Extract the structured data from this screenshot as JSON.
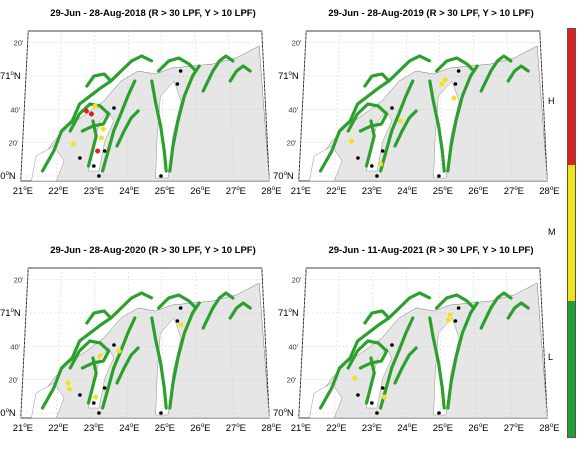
{
  "panels": [
    {
      "title": "29-Jun - 28-Aug-2018 (R > 30 LPF, Y > 10 LPF)",
      "markers": [
        {
          "lon": 22.8,
          "lat": 70.65,
          "level": "H"
        },
        {
          "lon": 22.95,
          "lat": 70.62,
          "level": "H"
        },
        {
          "lon": 23.05,
          "lat": 70.7,
          "level": "M"
        },
        {
          "lon": 23.3,
          "lat": 70.47,
          "level": "M"
        },
        {
          "lon": 23.25,
          "lat": 70.38,
          "level": "M"
        },
        {
          "lon": 23.15,
          "lat": 70.25,
          "level": "H"
        },
        {
          "lon": 22.45,
          "lat": 70.32,
          "level": "M"
        }
      ]
    },
    {
      "title": "29-Jun - 28-Aug-2019 (R > 30 LPF, Y > 10 LPF)",
      "markers": [
        {
          "lon": 25.15,
          "lat": 70.96,
          "level": "M"
        },
        {
          "lon": 25.05,
          "lat": 70.92,
          "level": "M"
        },
        {
          "lon": 25.4,
          "lat": 70.78,
          "level": "M"
        },
        {
          "lon": 23.3,
          "lat": 70.12,
          "level": "M"
        },
        {
          "lon": 22.45,
          "lat": 70.35,
          "level": "M"
        },
        {
          "lon": 23.85,
          "lat": 70.55,
          "level": "M"
        }
      ]
    },
    {
      "title": "29-Jun - 28-Aug-2020 (R > 30 LPF, Y > 10 LPF)",
      "markers": [
        {
          "lon": 23.75,
          "lat": 70.62,
          "level": "M"
        },
        {
          "lon": 23.2,
          "lat": 70.57,
          "level": "M"
        },
        {
          "lon": 22.3,
          "lat": 70.3,
          "level": "M"
        },
        {
          "lon": 22.35,
          "lat": 70.24,
          "level": "M"
        },
        {
          "lon": 23.1,
          "lat": 70.16,
          "level": "M"
        },
        {
          "lon": 25.55,
          "lat": 70.88,
          "level": "M"
        }
      ]
    },
    {
      "title": "29-Jun - 11-Aug-2021 (R > 30 LPF, Y > 10 LPF)",
      "markers": [
        {
          "lon": 25.3,
          "lat": 70.98,
          "level": "M"
        },
        {
          "lon": 25.25,
          "lat": 70.93,
          "level": "M"
        },
        {
          "lon": 23.4,
          "lat": 70.16,
          "level": "M"
        },
        {
          "lon": 22.55,
          "lat": 70.35,
          "level": "M"
        }
      ]
    }
  ],
  "axes": {
    "lon_labels": [
      "21",
      "22",
      "23",
      "24",
      "25",
      "26",
      "27",
      "28"
    ],
    "lon_values": [
      21,
      22,
      23,
      24,
      25,
      26,
      27,
      28
    ],
    "lon_hemisphere": "E",
    "lat_labels": [
      "70",
      "20'",
      "40'",
      "71",
      "20'"
    ],
    "lat_values": [
      70.0,
      70.333,
      70.667,
      71.0,
      71.333
    ],
    "lat_major": [
      true,
      false,
      false,
      true,
      false
    ],
    "lat_hemisphere": "N",
    "degree_symbol": "o"
  },
  "farms": [
    {
      "lon": 22.65,
      "lat": 70.18
    },
    {
      "lon": 23.05,
      "lat": 70.1
    },
    {
      "lon": 23.2,
      "lat": 70.0
    },
    {
      "lon": 23.35,
      "lat": 70.25
    },
    {
      "lon": 23.6,
      "lat": 70.68
    },
    {
      "lon": 24.95,
      "lat": 70.0
    },
    {
      "lon": 25.55,
      "lat": 71.05
    },
    {
      "lon": 25.45,
      "lat": 70.92
    }
  ],
  "colorbar": {
    "labels": [
      "H",
      "M",
      "L"
    ],
    "colors": {
      "H": "#e02020",
      "M": "#f2e21c",
      "L": "#20a033"
    }
  },
  "colors": {
    "land": "#e6e6e6",
    "coastline": "#777777",
    "low_risk": "#2ca02c",
    "farm": "#000000"
  }
}
